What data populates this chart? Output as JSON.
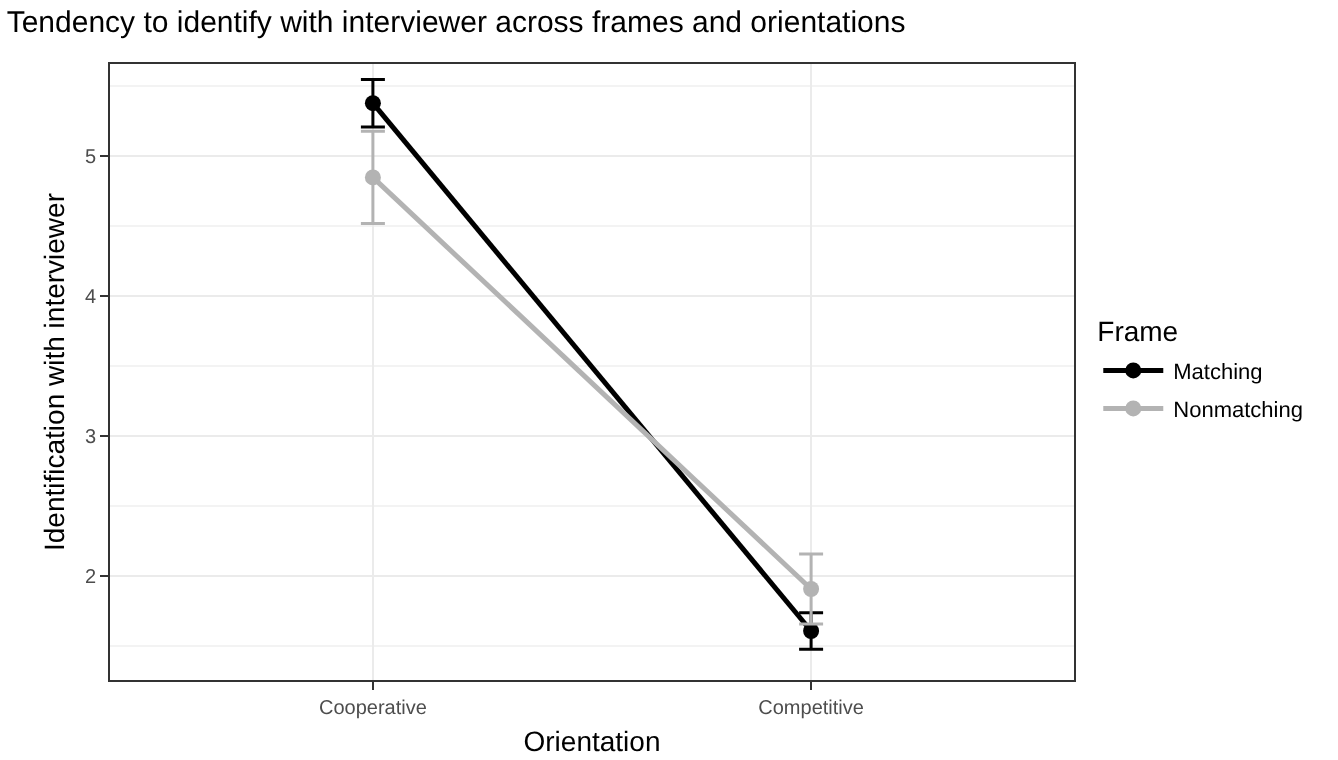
{
  "chart_data": {
    "type": "line",
    "title": "Tendency to identify with interviewer across frames and orientations",
    "xlabel": "Orientation",
    "ylabel": "Identification with interviewer",
    "legend_title": "Frame",
    "categories": [
      "Cooperative",
      "Competitive"
    ],
    "series": [
      {
        "name": "Matching",
        "color": "#000000",
        "values": [
          5.38,
          1.61
        ],
        "errors": [
          0.17,
          0.13
        ]
      },
      {
        "name": "Nonmatching",
        "color": "#b3b3b3",
        "values": [
          4.85,
          1.91
        ],
        "errors": [
          0.33,
          0.25
        ]
      }
    ],
    "ylim": [
      1.26,
      5.66
    ],
    "yticks": [
      2,
      3,
      4,
      5
    ],
    "grid": true,
    "legend": "right",
    "marker": "circle",
    "line_style": "solid"
  }
}
